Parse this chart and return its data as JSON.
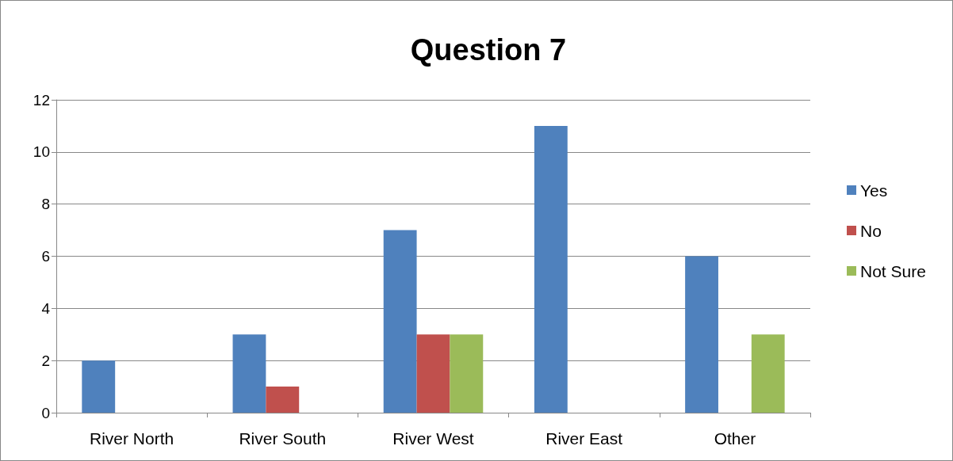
{
  "chart_data": {
    "type": "bar",
    "title": "Question 7",
    "categories": [
      "River North",
      "River South",
      "River West",
      "River East",
      "Other"
    ],
    "series": [
      {
        "name": "Yes",
        "color": "#4f81bd",
        "values": [
          2,
          3,
          7,
          11,
          6
        ]
      },
      {
        "name": "No",
        "color": "#c0504d",
        "values": [
          0,
          1,
          3,
          0,
          0
        ]
      },
      {
        "name": "Not Sure",
        "color": "#9bbb59",
        "values": [
          0,
          0,
          3,
          0,
          3
        ]
      }
    ],
    "ylim": [
      0,
      12
    ],
    "yticks": [
      0,
      2,
      4,
      6,
      8,
      10,
      12
    ],
    "grid": "y",
    "legend": "right"
  }
}
